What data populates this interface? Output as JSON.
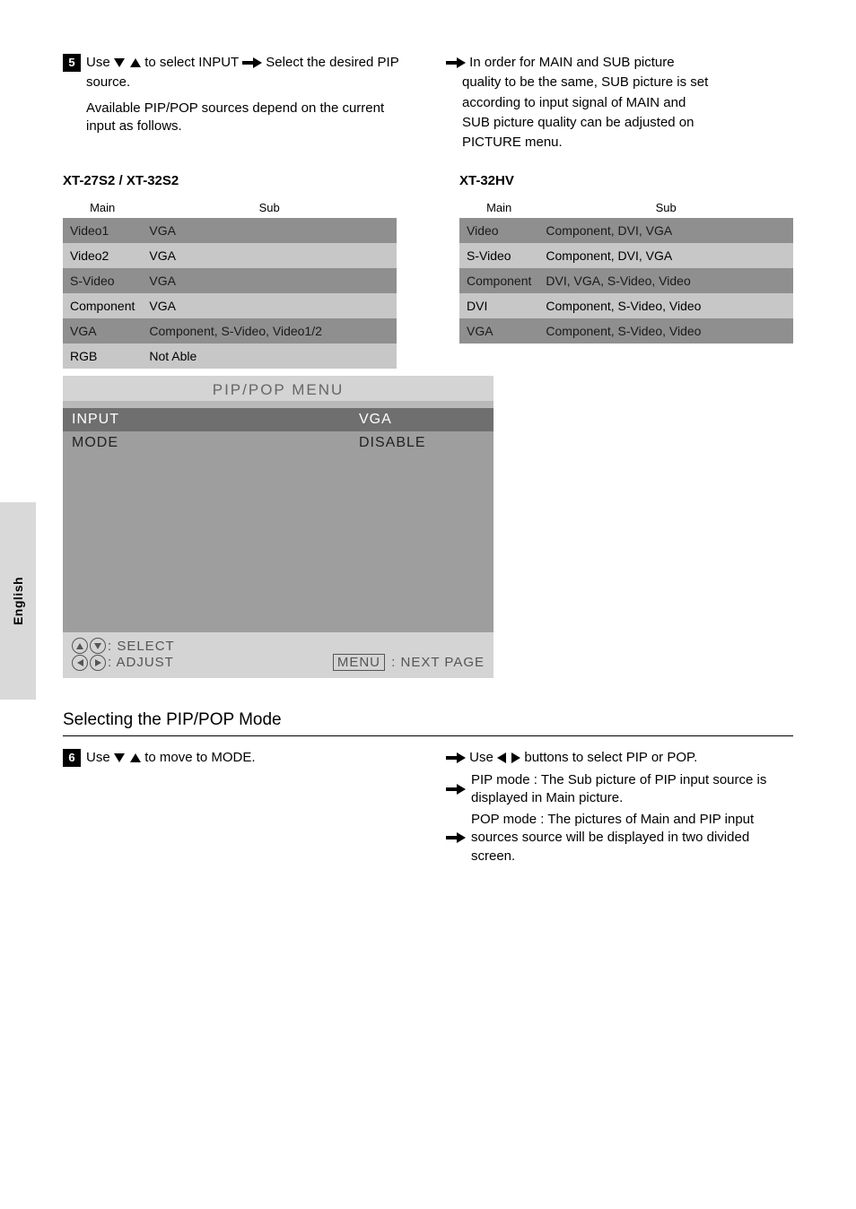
{
  "page_tab": "English",
  "step5": {
    "num": "5",
    "left_pre": "Use ",
    "left_mid": " to select INPUT ",
    "left_after_arrow": " Select the desired PIP",
    "left_line2": "source.",
    "left_note": "Available PIP/POP sources depend on the current input as follows.",
    "right_after_arrow": " In order for MAIN and SUB picture",
    "right_line2": "quality to be the same, SUB picture is set",
    "right_line3": "according to input signal of MAIN and",
    "right_line4": "SUB picture quality can be adjusted on",
    "right_line5": "PICTURE menu."
  },
  "tables": {
    "models_a": "XT-27S2 / XT-32S2",
    "models_b": "XT-32HV",
    "header_main": "Main",
    "header_sub": "Sub",
    "a_rows": [
      {
        "main": "Video1",
        "sub": "VGA"
      },
      {
        "main": "Video2",
        "sub": "VGA"
      },
      {
        "main": "S-Video",
        "sub": "VGA"
      },
      {
        "main": "Component",
        "sub": "VGA"
      },
      {
        "main": "VGA",
        "sub": "Component, S-Video, Video1/2"
      },
      {
        "main": "RGB",
        "sub": "Not Able"
      }
    ],
    "b_rows": [
      {
        "main": "Video",
        "sub": "Component, DVI, VGA"
      },
      {
        "main": "S-Video",
        "sub": "Component, DVI, VGA"
      },
      {
        "main": "Component",
        "sub": "DVI, VGA, S-Video, Video"
      },
      {
        "main": "DVI",
        "sub": "Component, S-Video, Video"
      },
      {
        "main": "VGA",
        "sub": "Component, S-Video, Video"
      }
    ]
  },
  "osd": {
    "title": "PIP/POP MENU",
    "rows": [
      {
        "l": "INPUT",
        "r": "VGA",
        "sel": true
      },
      {
        "l": "MODE",
        "r": "DISABLE",
        "sel": false
      }
    ],
    "foot_select": ": SELECT",
    "foot_adjust": ": ADJUST",
    "foot_menu_label": "MENU",
    "foot_menu_text": " : NEXT PAGE"
  },
  "section2": {
    "heading": "Selecting the PIP/POP Mode",
    "step6": {
      "num": "6",
      "left_pre": "Use ",
      "left_mid": " to move to MODE.",
      "right_after_arrow": " Use ",
      "right_mid": " buttons to select PIP or POP.",
      "b1": "PIP mode : The Sub picture of PIP input source is displayed in Main picture.",
      "b2": "POP mode : The pictures of Main and PIP input sources source will be displayed in two divided screen."
    }
  }
}
